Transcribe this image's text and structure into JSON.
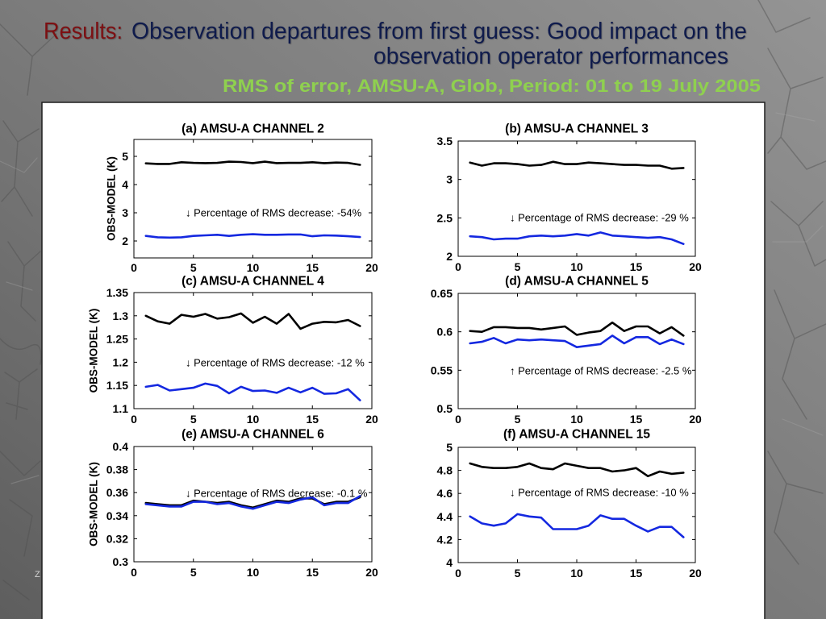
{
  "slide": {
    "title_prefix": "Results:",
    "title_line1": "Observation departures from first guess: Good impact on the",
    "title_line2": "observation operator performances",
    "subtitle": "RMS of error, AMSU-A, Glob, Period: 01 to 19 July 2005",
    "footer_fragment": "Z"
  },
  "colors": {
    "title_prefix": "#7d0f12",
    "title": "#0f1b4c",
    "subtitle": "#8fd04f"
  },
  "chart_data": [
    {
      "type": "line",
      "title": "(a) AMSU-A CHANNEL 2",
      "ylabel": "OBS-MODEL (K)",
      "x": [
        1,
        2,
        3,
        4,
        5,
        6,
        7,
        8,
        9,
        10,
        11,
        12,
        13,
        14,
        15,
        16,
        17,
        18,
        19
      ],
      "xlim": [
        0,
        20
      ],
      "xticks": [
        0,
        5,
        10,
        15,
        20
      ],
      "xtick_labels": [
        "0",
        "5",
        "10",
        "15",
        "20"
      ],
      "ylim": [
        1.4,
        5.6
      ],
      "yticks": [
        2,
        3,
        4,
        5
      ],
      "ytick_labels": [
        "2",
        "3",
        "4",
        "5"
      ],
      "grid": false,
      "series": [
        {
          "color": "#000000",
          "values": [
            4.75,
            4.73,
            4.73,
            4.79,
            4.77,
            4.76,
            4.77,
            4.81,
            4.8,
            4.76,
            4.81,
            4.76,
            4.77,
            4.77,
            4.79,
            4.76,
            4.78,
            4.77,
            4.7
          ]
        },
        {
          "color": "#1428e0",
          "values": [
            2.18,
            2.13,
            2.12,
            2.13,
            2.18,
            2.2,
            2.22,
            2.18,
            2.22,
            2.24,
            2.22,
            2.22,
            2.23,
            2.23,
            2.17,
            2.2,
            2.19,
            2.17,
            2.14
          ]
        }
      ],
      "annotation": "↓ Percentage of RMS decrease: -54%"
    },
    {
      "type": "line",
      "title": "(b) AMSU-A CHANNEL 3",
      "x": [
        1,
        2,
        3,
        4,
        5,
        6,
        7,
        8,
        9,
        10,
        11,
        12,
        13,
        14,
        15,
        16,
        17,
        18,
        19
      ],
      "xlim": [
        0,
        20
      ],
      "xticks": [
        0,
        5,
        10,
        15,
        20
      ],
      "xtick_labels": [
        "0",
        "5",
        "10",
        "15",
        "20"
      ],
      "ylim": [
        2,
        3.5
      ],
      "yticks": [
        2,
        2.5,
        3,
        3.5
      ],
      "ytick_labels": [
        "2",
        "2.5",
        "3",
        "3.5"
      ],
      "grid": false,
      "series": [
        {
          "color": "#000000",
          "values": [
            3.22,
            3.18,
            3.21,
            3.21,
            3.2,
            3.18,
            3.19,
            3.23,
            3.2,
            3.2,
            3.22,
            3.21,
            3.2,
            3.19,
            3.19,
            3.18,
            3.18,
            3.14,
            3.15
          ]
        },
        {
          "color": "#1428e0",
          "values": [
            2.26,
            2.25,
            2.22,
            2.23,
            2.23,
            2.26,
            2.27,
            2.26,
            2.27,
            2.29,
            2.27,
            2.31,
            2.27,
            2.26,
            2.25,
            2.24,
            2.25,
            2.22,
            2.16
          ]
        }
      ],
      "annotation": "↓ Percentage of RMS decrease: -29 %"
    },
    {
      "type": "line",
      "title": "(c) AMSU-A CHANNEL 4",
      "ylabel": "OBS-MODEL (K)",
      "x": [
        1,
        2,
        3,
        4,
        5,
        6,
        7,
        8,
        9,
        10,
        11,
        12,
        13,
        14,
        15,
        16,
        17,
        18,
        19
      ],
      "xlim": [
        0,
        20
      ],
      "xticks": [
        0,
        5,
        10,
        15,
        20
      ],
      "xtick_labels": [
        "0",
        "5",
        "10",
        "15",
        "20"
      ],
      "ylim": [
        1.1,
        1.35
      ],
      "yticks": [
        1.1,
        1.15,
        1.2,
        1.25,
        1.3,
        1.35
      ],
      "ytick_labels": [
        "1.1",
        "1.15",
        "1.2",
        "1.25",
        "1.3",
        "1.35"
      ],
      "grid": false,
      "series": [
        {
          "color": "#000000",
          "values": [
            1.3,
            1.288,
            1.283,
            1.302,
            1.298,
            1.304,
            1.294,
            1.297,
            1.305,
            1.285,
            1.298,
            1.283,
            1.304,
            1.272,
            1.283,
            1.287,
            1.286,
            1.291,
            1.278
          ]
        },
        {
          "color": "#1428e0",
          "values": [
            1.147,
            1.151,
            1.139,
            1.142,
            1.145,
            1.154,
            1.149,
            1.133,
            1.147,
            1.138,
            1.139,
            1.134,
            1.145,
            1.135,
            1.145,
            1.132,
            1.133,
            1.142,
            1.118
          ]
        }
      ],
      "annotation": "↓ Percentage of RMS decrease: -12 %"
    },
    {
      "type": "line",
      "title": "(d) AMSU-A CHANNEL 5",
      "x": [
        1,
        2,
        3,
        4,
        5,
        6,
        7,
        8,
        9,
        10,
        11,
        12,
        13,
        14,
        15,
        16,
        17,
        18,
        19
      ],
      "xlim": [
        0,
        20
      ],
      "xticks": [
        0,
        5,
        10,
        15,
        20
      ],
      "xtick_labels": [
        "0",
        "5",
        "10",
        "15",
        "20"
      ],
      "ylim": [
        0.5,
        0.65
      ],
      "yticks": [
        0.5,
        0.55,
        0.6,
        0.65
      ],
      "ytick_labels": [
        "0.5",
        "0.55",
        "0.6",
        "0.65"
      ],
      "grid": false,
      "series": [
        {
          "color": "#000000",
          "values": [
            0.601,
            0.6,
            0.606,
            0.606,
            0.605,
            0.605,
            0.603,
            0.605,
            0.607,
            0.596,
            0.599,
            0.601,
            0.612,
            0.601,
            0.607,
            0.607,
            0.598,
            0.606,
            0.595
          ]
        },
        {
          "color": "#1428e0",
          "values": [
            0.585,
            0.587,
            0.592,
            0.585,
            0.59,
            0.589,
            0.59,
            0.589,
            0.588,
            0.58,
            0.582,
            0.584,
            0.595,
            0.585,
            0.593,
            0.593,
            0.584,
            0.59,
            0.584
          ]
        }
      ],
      "annotation": "↑ Percentage of RMS decrease: -2.5 %"
    },
    {
      "type": "line",
      "title": "(e) AMSU-A CHANNEL 6",
      "ylabel": "OBS-MODEL (K)",
      "x": [
        1,
        2,
        3,
        4,
        5,
        6,
        7,
        8,
        9,
        10,
        11,
        12,
        13,
        14,
        15,
        16,
        17,
        18,
        19
      ],
      "xlim": [
        0,
        20
      ],
      "xticks": [
        0,
        5,
        10,
        15,
        20
      ],
      "xtick_labels": [
        "0",
        "5",
        "10",
        "15",
        "20"
      ],
      "ylim": [
        0.3,
        0.4
      ],
      "yticks": [
        0.3,
        0.32,
        0.34,
        0.36,
        0.38,
        0.4
      ],
      "ytick_labels": [
        "0.3",
        "0.32",
        "0.34",
        "0.36",
        "0.38",
        "0.4"
      ],
      "grid": false,
      "series": [
        {
          "color": "#000000",
          "values": [
            0.351,
            0.35,
            0.349,
            0.349,
            0.353,
            0.352,
            0.351,
            0.352,
            0.349,
            0.347,
            0.35,
            0.353,
            0.352,
            0.355,
            0.355,
            0.35,
            0.352,
            0.352,
            0.356
          ]
        },
        {
          "color": "#1428e0",
          "values": [
            0.35,
            0.349,
            0.348,
            0.348,
            0.352,
            0.352,
            0.35,
            0.351,
            0.348,
            0.346,
            0.349,
            0.352,
            0.351,
            0.354,
            0.356,
            0.349,
            0.351,
            0.351,
            0.357
          ]
        }
      ],
      "annotation": "↓ Percentage of RMS decrease: -0.1 %"
    },
    {
      "type": "line",
      "title": "(f) AMSU-A CHANNEL 15",
      "x": [
        1,
        2,
        3,
        4,
        5,
        6,
        7,
        8,
        9,
        10,
        11,
        12,
        13,
        14,
        15,
        16,
        17,
        18,
        19
      ],
      "xlim": [
        0,
        20
      ],
      "xticks": [
        0,
        5,
        10,
        15,
        20
      ],
      "xtick_labels": [
        "0",
        "5",
        "10",
        "15",
        "20"
      ],
      "ylim": [
        4,
        5
      ],
      "yticks": [
        4,
        4.2,
        4.4,
        4.6,
        4.8,
        5
      ],
      "ytick_labels": [
        "4",
        "4.2",
        "4.4",
        "4.6",
        "4.8",
        "5"
      ],
      "grid": false,
      "series": [
        {
          "color": "#000000",
          "values": [
            4.86,
            4.83,
            4.82,
            4.82,
            4.83,
            4.86,
            4.82,
            4.81,
            4.86,
            4.84,
            4.82,
            4.82,
            4.79,
            4.8,
            4.82,
            4.75,
            4.79,
            4.77,
            4.78
          ]
        },
        {
          "color": "#1428e0",
          "values": [
            4.4,
            4.34,
            4.32,
            4.34,
            4.42,
            4.4,
            4.39,
            4.29,
            4.29,
            4.29,
            4.32,
            4.41,
            4.38,
            4.38,
            4.32,
            4.27,
            4.31,
            4.31,
            4.22
          ]
        }
      ],
      "annotation": "↓ Percentage of RMS decrease: -10 %"
    }
  ]
}
